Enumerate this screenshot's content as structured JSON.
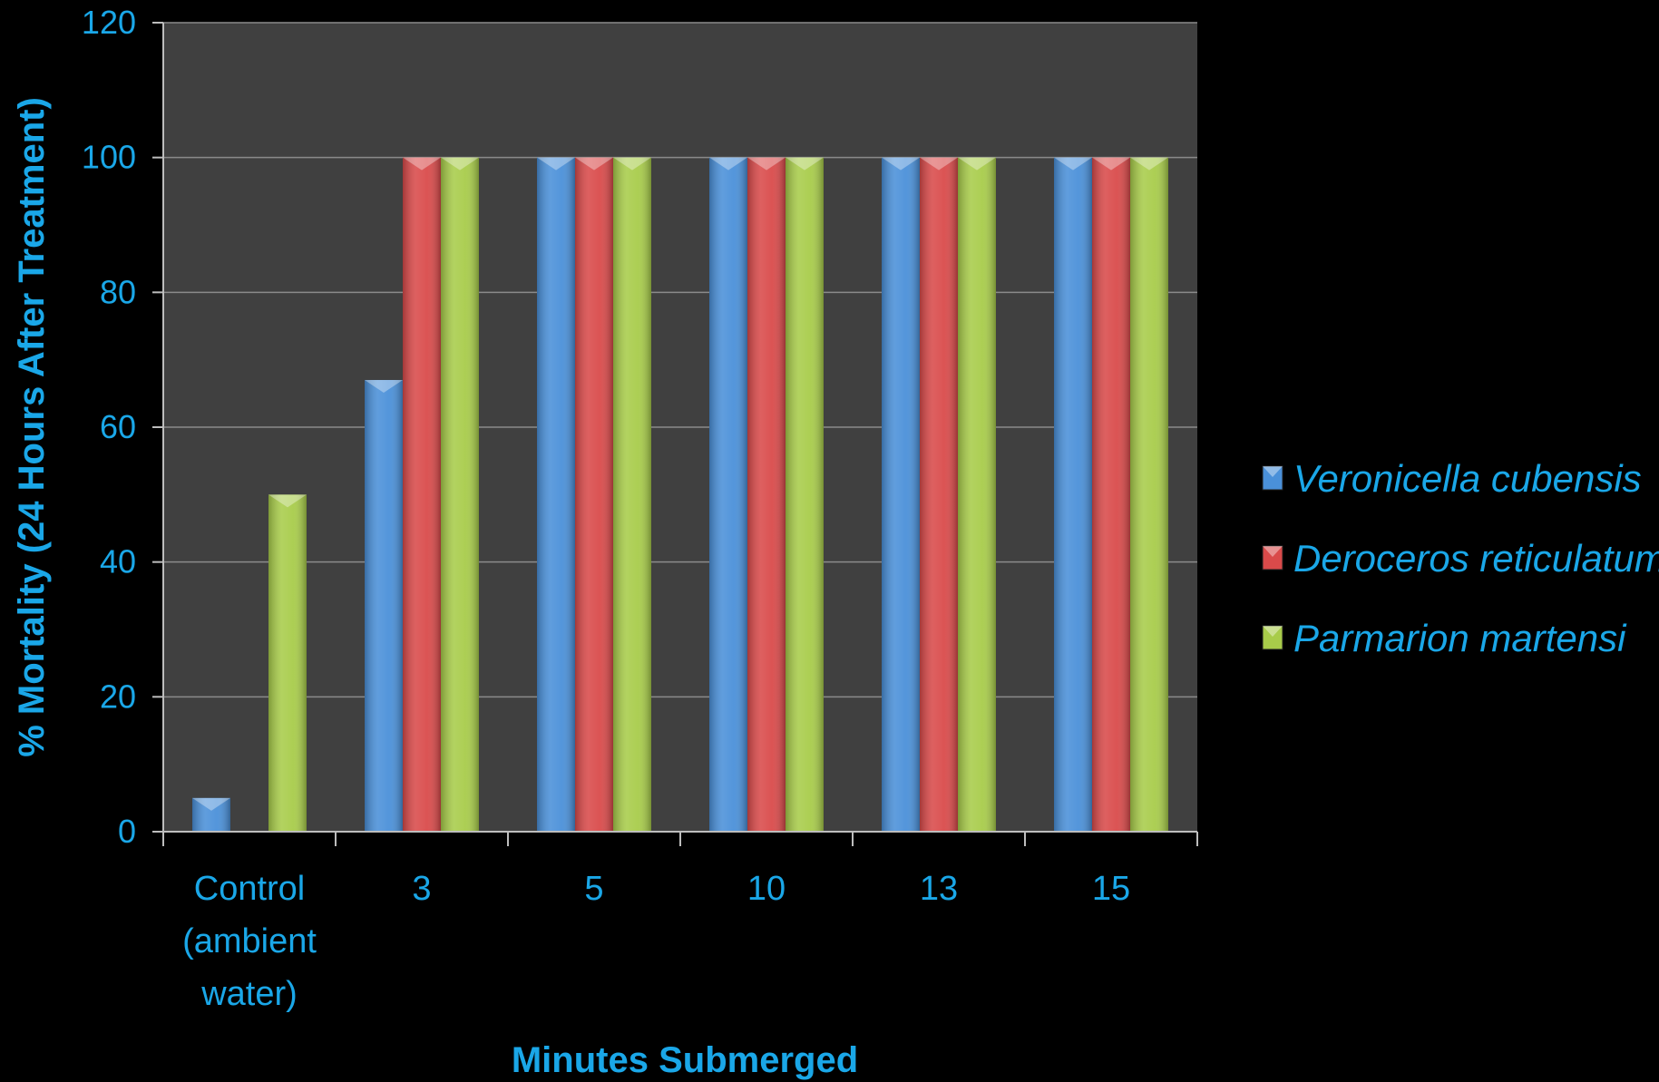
{
  "chart_data": {
    "type": "bar",
    "categories": [
      [
        "Control",
        "(ambient",
        "water)"
      ],
      [
        "3"
      ],
      [
        "5"
      ],
      [
        "10"
      ],
      [
        "13"
      ],
      [
        "15"
      ]
    ],
    "series": [
      {
        "name": "Veronicella cubensis",
        "values": [
          5,
          67,
          100,
          100,
          100,
          100
        ],
        "color": "#4A90D9"
      },
      {
        "name": "Deroceros reticulatum",
        "values": [
          null,
          100,
          100,
          100,
          100,
          100
        ],
        "color": "#D94A4A"
      },
      {
        "name": "Parmarion martensi",
        "values": [
          50,
          100,
          100,
          100,
          100,
          100
        ],
        "color": "#A8CC4A"
      }
    ],
    "xlabel": "Minutes Submerged",
    "ylabel": "% Mortality  (24 Hours After Treatment)",
    "ylim": [
      0,
      120
    ],
    "yticks": [
      "0",
      "20",
      "40",
      "60",
      "80",
      "100",
      "120"
    ],
    "grid": true,
    "legend_position": "right",
    "text_color": "#1AA7E8",
    "plot_background": "#404040",
    "page_background": "#000000"
  }
}
